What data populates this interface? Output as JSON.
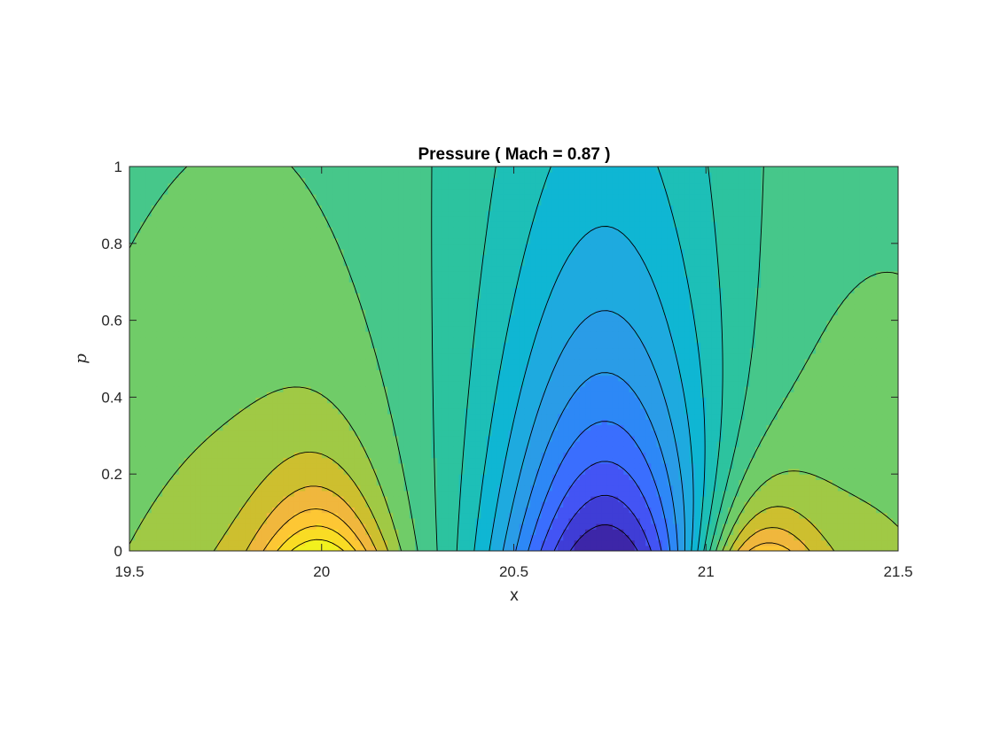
{
  "chart_data": {
    "type": "contour",
    "title": "Pressure  ( Mach =  0.87  )",
    "xlabel": "x",
    "ylabel": "p",
    "xlim": [
      19.5,
      21.5
    ],
    "ylim": [
      0,
      1
    ],
    "x_ticks": [
      19.5,
      20,
      20.5,
      21,
      21.5
    ],
    "x_tick_labels": [
      "19.5",
      "20",
      "20.5",
      "21",
      "21.5"
    ],
    "y_ticks": [
      0,
      0.2,
      0.4,
      0.6,
      0.8,
      1
    ],
    "y_tick_labels": [
      "0",
      "0.2",
      "0.4",
      "0.6",
      "0.8",
      "1"
    ],
    "colormap": "parula",
    "field_description": "Contour bands of pressure: high values (yellow) near the bottom around x = 20.0 and x = 21.1, lowest values (dark blue) near the bottom around x = 20.75, fanning upward toward the top edge.",
    "level_colors": [
      "#3d26a8",
      "#3f3dd6",
      "#4354f4",
      "#3a6efe",
      "#2d88f6",
      "#2a9ce7",
      "#1eaadf",
      "#0fb6d3",
      "#1dbfb7",
      "#2cc39f",
      "#46c78a",
      "#70cc68",
      "#a0c945",
      "#cdbf2f",
      "#f0b73d",
      "#fdc734",
      "#f9dc24",
      "#f2f11e"
    ]
  }
}
